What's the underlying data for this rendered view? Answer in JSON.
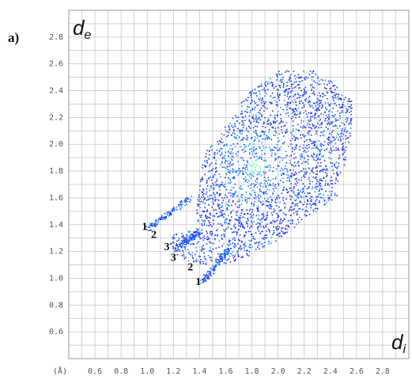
{
  "chart_data": {
    "type": "scatter",
    "panel_label": "a)",
    "xlabel": "d",
    "xlabel_sub": "i",
    "ylabel": "d",
    "ylabel_sub": "e",
    "unit_label": "(Å)",
    "xlim": [
      0.4,
      3.0
    ],
    "ylim": [
      0.4,
      3.0
    ],
    "grid": true,
    "x_ticks": [
      "0.6",
      "0.8",
      "1.0",
      "1.2",
      "1.4",
      "1.6",
      "1.8",
      "2.0",
      "2.2",
      "2.4",
      "2.6",
      "2.8"
    ],
    "y_ticks": [
      "0.6",
      "0.8",
      "1.0",
      "1.2",
      "1.4",
      "1.6",
      "1.8",
      "2.0",
      "2.2",
      "2.4",
      "2.6",
      "2.8"
    ],
    "colors": {
      "low": "#1e32ff",
      "mid": "#1e90ff",
      "high": "#40ffb0",
      "grid": "#c8c8c8",
      "frame": "#9a9a9a"
    },
    "density_hotspot": {
      "x": 1.82,
      "y": 1.84
    },
    "annotations": [
      {
        "text": "1",
        "x": 0.98,
        "y": 1.36
      },
      {
        "text": "2",
        "x": 1.05,
        "y": 1.3
      },
      {
        "text": "3",
        "x": 1.15,
        "y": 1.21
      },
      {
        "text": "3",
        "x": 1.2,
        "y": 1.13
      },
      {
        "text": "2",
        "x": 1.33,
        "y": 1.06
      },
      {
        "text": "1",
        "x": 1.39,
        "y": 0.95
      }
    ]
  }
}
